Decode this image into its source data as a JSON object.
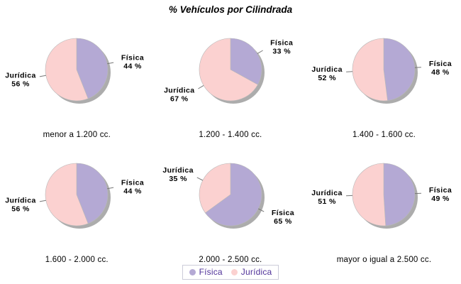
{
  "title": "% Vehículos por Cilindrada",
  "colors": {
    "fisica": "#b4a9d4",
    "juridica": "#fbd1d0",
    "shadow": "#a3a3a3",
    "wedge_outline": "#b8b8b8",
    "leader_line": "#777777",
    "label_text": "#000000",
    "legend_text": "#4f3199",
    "legend_border": "#ccccd9"
  },
  "legend": {
    "items": [
      {
        "label": "Física",
        "color": "#b4a9d4"
      },
      {
        "label": "Jurídica",
        "color": "#fbd1d0"
      }
    ]
  },
  "value_suffix": " %",
  "chart_data": [
    {
      "type": "pie",
      "title": "menor a 1.200 cc.",
      "labels": [
        "Física",
        "Jurídica"
      ],
      "values": [
        44,
        56
      ]
    },
    {
      "type": "pie",
      "title": "1.200 - 1.400 cc.",
      "labels": [
        "Física",
        "Jurídica"
      ],
      "values": [
        33,
        67
      ]
    },
    {
      "type": "pie",
      "title": "1.400 - 1.600 cc.",
      "labels": [
        "Física",
        "Jurídica"
      ],
      "values": [
        48,
        52
      ]
    },
    {
      "type": "pie",
      "title": "1.600 - 2.000 cc.",
      "labels": [
        "Física",
        "Jurídica"
      ],
      "values": [
        44,
        56
      ]
    },
    {
      "type": "pie",
      "title": "2.000 - 2.500 cc.",
      "labels": [
        "Física",
        "Jurídica"
      ],
      "values": [
        65,
        35
      ]
    },
    {
      "type": "pie",
      "title": "mayor o igual a 2.500 cc.",
      "labels": [
        "Física",
        "Jurídica"
      ],
      "values": [
        49,
        51
      ]
    }
  ]
}
